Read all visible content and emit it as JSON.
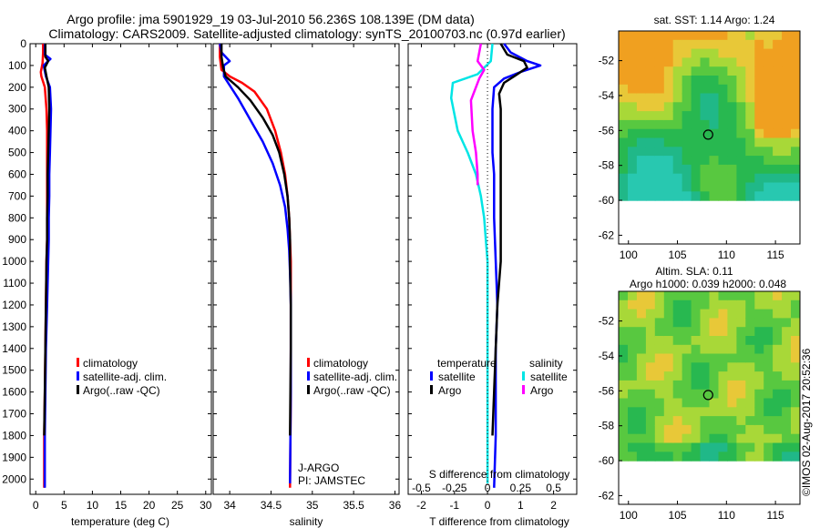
{
  "header": {
    "line1": "Argo profile: jma 5901929_19 03-Jul-2010 56.236S 108.139E (DM data)",
    "line2": "Climatology: CARS2009. Satellite-adjusted climatology: synTS_20100703.nc (0.97d earlier)"
  },
  "side_stamp": "©IMOS 02-Aug-2017 20:52:36",
  "colors": {
    "climatology": "#ff0000",
    "satellite": "#0000ff",
    "argo": "#000000",
    "sal_satellite": "#00e5e5",
    "sal_argo": "#ff00ff",
    "map_water": "#20c0a0",
    "map_land_warm": "#f0a020"
  },
  "chart_data": [
    {
      "id": "temperature",
      "type": "line",
      "xlabel": "temperature (deg C)",
      "ylabel": "",
      "xticks": [
        0,
        5,
        10,
        15,
        20,
        25,
        30
      ],
      "xlim": [
        -1,
        31
      ],
      "yticks": [
        0,
        100,
        200,
        300,
        400,
        500,
        600,
        700,
        800,
        900,
        1000,
        1100,
        1200,
        1300,
        1400,
        1500,
        1600,
        1700,
        1800,
        1900,
        2000
      ],
      "ylim": [
        2070,
        0
      ],
      "legend": [
        "climatology",
        "satellite-adj. clim.",
        "Argo(..raw -QC)"
      ],
      "series": [
        {
          "name": "climatology",
          "color": "#ff0000",
          "x": [
            1.3,
            1.3,
            1.2,
            0.9,
            1.0,
            1.6,
            1.9,
            2.0,
            2.0,
            2.0,
            2.0,
            2.0,
            2.0,
            1.9,
            1.8,
            1.7,
            1.6,
            1.5,
            1.5
          ],
          "y": [
            0,
            40,
            90,
            130,
            150,
            200,
            300,
            400,
            500,
            600,
            700,
            800,
            900,
            1000,
            1200,
            1400,
            1600,
            1800,
            2040
          ]
        },
        {
          "name": "satellite-adj. clim.",
          "color": "#0000ff",
          "x": [
            1.6,
            1.6,
            2.6,
            1.4,
            1.8,
            2.5,
            2.7,
            2.6,
            2.5,
            2.4,
            2.4,
            2.3,
            2.3,
            2.2,
            2.0,
            1.8,
            1.7,
            1.6,
            1.6
          ],
          "y": [
            0,
            50,
            70,
            100,
            150,
            200,
            300,
            400,
            500,
            600,
            700,
            800,
            900,
            1000,
            1200,
            1400,
            1600,
            1800,
            2040
          ]
        },
        {
          "name": "Argo(..raw -QC)",
          "color": "#000000",
          "x": [
            1.7,
            1.7,
            2.2,
            1.6,
            1.9,
            2.3,
            2.4,
            2.3,
            2.2,
            2.1,
            2.1,
            2.0,
            2.0,
            1.9,
            1.8,
            1.7,
            1.6,
            1.5
          ],
          "y": [
            0,
            60,
            80,
            110,
            150,
            200,
            300,
            400,
            500,
            600,
            700,
            800,
            900,
            1000,
            1200,
            1400,
            1600,
            1800
          ]
        }
      ]
    },
    {
      "id": "salinity",
      "type": "line",
      "xlabel": "salinity",
      "ylabel": "",
      "xticks": [
        34,
        34.5,
        35,
        35.5,
        36
      ],
      "xlim": [
        33.8,
        36.05
      ],
      "ylim": [
        2070,
        0
      ],
      "legend": [
        "climatology",
        "satellite-adj. clim.",
        "Argo(..raw -QC)"
      ],
      "annotation": [
        "J-ARGO",
        "PI: JAMSTEC"
      ],
      "series": [
        {
          "name": "climatology",
          "color": "#ff0000",
          "x": [
            33.88,
            33.88,
            33.9,
            34.0,
            34.15,
            34.3,
            34.45,
            34.55,
            34.62,
            34.67,
            34.7,
            34.72,
            34.73,
            34.74,
            34.74,
            34.74,
            34.74,
            34.73
          ],
          "y": [
            0,
            60,
            120,
            150,
            180,
            220,
            300,
            400,
            500,
            600,
            700,
            800,
            900,
            1000,
            1200,
            1400,
            1600,
            2040
          ]
        },
        {
          "name": "satellite-adj. clim.",
          "color": "#0000ff",
          "x": [
            33.88,
            33.9,
            34.0,
            33.93,
            33.93,
            34.1,
            34.25,
            34.4,
            34.52,
            34.61,
            34.67,
            34.7,
            34.72,
            34.73,
            34.74,
            34.74,
            34.74,
            34.73
          ],
          "y": [
            0,
            40,
            80,
            100,
            150,
            250,
            350,
            450,
            550,
            650,
            750,
            850,
            950,
            1050,
            1200,
            1400,
            1600,
            2020
          ]
        },
        {
          "name": "Argo(..raw -QC)",
          "color": "#000000",
          "x": [
            33.9,
            33.9,
            33.92,
            33.95,
            34.1,
            34.25,
            34.4,
            34.52,
            34.6,
            34.66,
            34.7,
            34.72,
            34.73,
            34.73,
            34.74,
            34.74,
            34.73
          ],
          "y": [
            0,
            60,
            110,
            150,
            200,
            260,
            340,
            420,
            500,
            600,
            700,
            800,
            900,
            1000,
            1200,
            1400,
            1800
          ]
        }
      ]
    },
    {
      "id": "difference",
      "type": "line",
      "xlabel": "T difference from climatology",
      "xlabel_top": "S difference from climatology",
      "xticks": [
        -2,
        -1,
        0,
        1,
        2
      ],
      "xticks_top": [
        -0.5,
        -0.25,
        0,
        0.25,
        0.5
      ],
      "xlim": [
        -2.4,
        2.7
      ],
      "ylim": [
        2070,
        0
      ],
      "legend_left_title": "temperature",
      "legend_right_title": "salinity",
      "legend": [
        "satellite",
        "Argo",
        "satellite",
        "Argo"
      ],
      "series": [
        {
          "name": "temperature satellite",
          "color": "#0000ff",
          "x": [
            0.5,
            0.7,
            1.2,
            1.6,
            1.0,
            0.5,
            0.2,
            0.15,
            0.15,
            0.15,
            0.2,
            0.2,
            0.2,
            0.25,
            0.3,
            0.25,
            0.25,
            0.25,
            0.2
          ],
          "y": [
            0,
            40,
            80,
            100,
            130,
            160,
            200,
            300,
            400,
            500,
            600,
            700,
            800,
            1000,
            1200,
            1400,
            1600,
            1800,
            2040
          ]
        },
        {
          "name": "temperature Argo",
          "color": "#000000",
          "x": [
            0.4,
            0.6,
            1.1,
            1.2,
            0.8,
            0.5,
            0.35,
            0.4,
            0.4,
            0.4,
            0.4,
            0.4,
            0.4,
            0.4,
            0.3,
            0.25,
            0.2,
            0.15
          ],
          "y": [
            0,
            50,
            80,
            110,
            150,
            180,
            230,
            300,
            400,
            500,
            600,
            700,
            800,
            1000,
            1200,
            1400,
            1600,
            1800
          ]
        },
        {
          "name": "salinity satellite",
          "color": "#00e5e5",
          "x": [
            0.15,
            0.1,
            -0.3,
            -1.05,
            -1.1,
            -0.9,
            -0.6,
            -0.35,
            -0.2,
            -0.1,
            -0.05,
            0.0,
            0.0,
            0.0,
            0.0,
            0.0,
            0.0,
            0.0
          ],
          "y": [
            0,
            80,
            140,
            180,
            250,
            400,
            500,
            600,
            700,
            800,
            900,
            1000,
            1200,
            1400,
            1600,
            1800,
            1950,
            2020
          ]
        },
        {
          "name": "salinity Argo",
          "color": "#ff00ff",
          "x": [
            -0.2,
            -0.3,
            -0.1,
            -0.25,
            -0.5,
            -0.45,
            -0.35,
            -0.3,
            -0.3
          ],
          "y": [
            0,
            80,
            120,
            160,
            260,
            400,
            500,
            600,
            650
          ]
        }
      ]
    },
    {
      "id": "sst_map",
      "type": "heatmap",
      "title": "sat. SST: 1.14  Argo: 1.24",
      "xticks": [
        100,
        105,
        110,
        115
      ],
      "yticks": [
        -52,
        -54,
        -56,
        -58,
        -60,
        -62
      ],
      "xlim": [
        99,
        117.5
      ],
      "ylim": [
        -62.5,
        -50.3
      ],
      "marker": {
        "lon": 108.139,
        "lat": -56.236
      }
    },
    {
      "id": "sla_map",
      "type": "heatmap",
      "title": "Altim. SLA: 0.11",
      "subtitle": "Argo h1000: 0.039 h2000: 0.048",
      "xticks": [
        100,
        105,
        110,
        115
      ],
      "yticks": [
        -52,
        -54,
        -56,
        -58,
        -60,
        -62
      ],
      "xlim": [
        99,
        117.5
      ],
      "ylim": [
        -62.5,
        -50.3
      ],
      "marker": {
        "lon": 108.139,
        "lat": -56.236
      }
    }
  ]
}
